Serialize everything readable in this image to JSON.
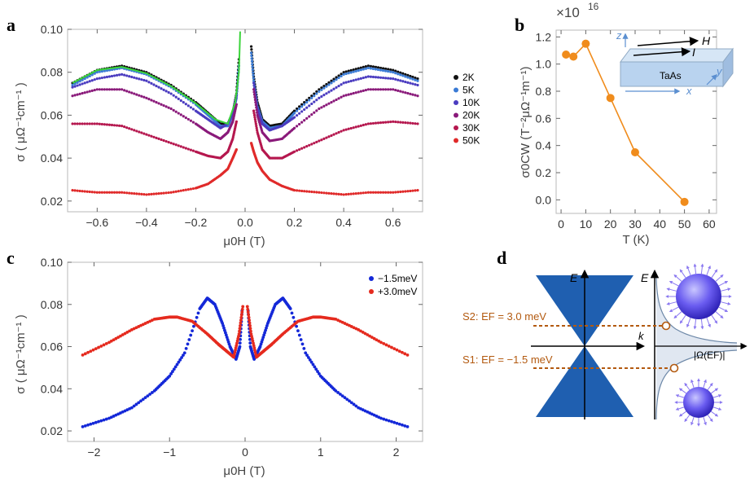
{
  "panels": {
    "a": "a",
    "b": "b",
    "c": "c",
    "d": "d"
  },
  "chart_data": [
    {
      "panel": "a",
      "type": "scatter",
      "xlabel": "μ0H (T)",
      "ylabel": "σ ( μΩ⁻¹cm⁻¹ )",
      "xlim": [
        -0.72,
        0.72
      ],
      "ylim": [
        0.015,
        0.1
      ],
      "xticks": [
        -0.6,
        -0.4,
        -0.2,
        0.0,
        0.2,
        0.4,
        0.6
      ],
      "xtick_labels": [
        "−0.6",
        "−0.4",
        "−0.2",
        "0.0",
        "0.2",
        "0.4",
        "0.6"
      ],
      "yticks": [
        0.02,
        0.04,
        0.06,
        0.08,
        0.1
      ],
      "ytick_labels": [
        "0.02",
        "0.04",
        "0.06",
        "0.08",
        "0.10"
      ],
      "legend_position": "right",
      "series": [
        {
          "name": "2K",
          "color": "#111111",
          "x": [
            -0.7,
            -0.6,
            -0.5,
            -0.4,
            -0.3,
            -0.2,
            -0.15,
            -0.1,
            -0.07,
            -0.05,
            -0.035,
            -0.025,
            0.025,
            0.035,
            0.05,
            0.07,
            0.1,
            0.15,
            0.2,
            0.3,
            0.4,
            0.5,
            0.6,
            0.7
          ],
          "y": [
            0.075,
            0.081,
            0.083,
            0.08,
            0.074,
            0.066,
            0.061,
            0.056,
            0.056,
            0.061,
            0.07,
            0.086,
            0.092,
            0.078,
            0.066,
            0.058,
            0.055,
            0.056,
            0.062,
            0.072,
            0.08,
            0.083,
            0.081,
            0.077
          ]
        },
        {
          "name": "5K",
          "color": "#3a7bd5",
          "x": [
            -0.7,
            -0.6,
            -0.5,
            -0.4,
            -0.3,
            -0.2,
            -0.15,
            -0.1,
            -0.07,
            -0.05,
            -0.035,
            -0.025,
            0.025,
            0.035,
            0.05,
            0.07,
            0.1,
            0.15,
            0.2,
            0.3,
            0.4,
            0.5,
            0.6,
            0.7
          ],
          "y": [
            0.074,
            0.08,
            0.082,
            0.079,
            0.073,
            0.065,
            0.06,
            0.055,
            0.055,
            0.06,
            0.068,
            0.083,
            0.089,
            0.076,
            0.064,
            0.057,
            0.054,
            0.055,
            0.061,
            0.071,
            0.079,
            0.082,
            0.08,
            0.076
          ]
        },
        {
          "name": "10K",
          "color": "#4b3cc0",
          "x": [
            -0.7,
            -0.6,
            -0.5,
            -0.4,
            -0.3,
            -0.2,
            -0.15,
            -0.1,
            -0.07,
            -0.05,
            -0.035,
            0.035,
            0.05,
            0.07,
            0.1,
            0.15,
            0.2,
            0.3,
            0.4,
            0.5,
            0.6,
            0.7
          ],
          "y": [
            0.073,
            0.077,
            0.079,
            0.076,
            0.07,
            0.062,
            0.058,
            0.054,
            0.056,
            0.061,
            0.069,
            0.075,
            0.063,
            0.056,
            0.053,
            0.055,
            0.059,
            0.068,
            0.075,
            0.078,
            0.077,
            0.074
          ]
        },
        {
          "name": "20K",
          "color": "#8a1a7a",
          "x": [
            -0.7,
            -0.6,
            -0.5,
            -0.4,
            -0.3,
            -0.2,
            -0.15,
            -0.1,
            -0.07,
            -0.05,
            -0.035,
            0.035,
            0.05,
            0.07,
            0.1,
            0.15,
            0.2,
            0.3,
            0.4,
            0.5,
            0.6,
            0.7
          ],
          "y": [
            0.069,
            0.072,
            0.072,
            0.068,
            0.063,
            0.056,
            0.052,
            0.049,
            0.052,
            0.057,
            0.065,
            0.072,
            0.06,
            0.052,
            0.048,
            0.049,
            0.054,
            0.063,
            0.069,
            0.072,
            0.072,
            0.069
          ]
        },
        {
          "name": "30K",
          "color": "#b5174e",
          "x": [
            -0.7,
            -0.6,
            -0.5,
            -0.4,
            -0.3,
            -0.2,
            -0.15,
            -0.1,
            -0.07,
            -0.05,
            -0.035,
            0.035,
            0.05,
            0.07,
            0.1,
            0.15,
            0.2,
            0.3,
            0.4,
            0.5,
            0.6,
            0.7
          ],
          "y": [
            0.056,
            0.056,
            0.055,
            0.051,
            0.047,
            0.043,
            0.041,
            0.04,
            0.043,
            0.049,
            0.057,
            0.062,
            0.052,
            0.044,
            0.04,
            0.04,
            0.043,
            0.048,
            0.053,
            0.056,
            0.057,
            0.056
          ]
        },
        {
          "name": "50K",
          "color": "#e02a2a",
          "x": [
            -0.7,
            -0.6,
            -0.5,
            -0.4,
            -0.3,
            -0.2,
            -0.15,
            -0.1,
            -0.07,
            -0.05,
            -0.035,
            0.025,
            0.035,
            0.05,
            0.07,
            0.1,
            0.15,
            0.2,
            0.3,
            0.4,
            0.5,
            0.6,
            0.7
          ],
          "y": [
            0.025,
            0.024,
            0.024,
            0.023,
            0.024,
            0.026,
            0.028,
            0.032,
            0.035,
            0.04,
            0.044,
            0.047,
            0.043,
            0.038,
            0.034,
            0.03,
            0.027,
            0.025,
            0.024,
            0.023,
            0.024,
            0.024,
            0.025
          ]
        }
      ]
    },
    {
      "panel": "b",
      "type": "line",
      "xlabel": "T (K)",
      "ylabel": "σ0CW (T⁻²μΩ⁻¹m⁻¹)",
      "multiplier": "×10",
      "multiplier_exp": "16",
      "xlim": [
        -2,
        63
      ],
      "ylim": [
        -0.1,
        1.25
      ],
      "xticks": [
        0,
        10,
        20,
        30,
        40,
        50,
        60
      ],
      "xtick_labels": [
        "0",
        "10",
        "20",
        "30",
        "40",
        "50",
        "60"
      ],
      "yticks": [
        0.0,
        0.2,
        0.4,
        0.6,
        0.8,
        1.0,
        1.2
      ],
      "ytick_labels": [
        "0.0",
        "0.2",
        "0.4",
        "0.6",
        "0.8",
        "1.0",
        "1.2"
      ],
      "series": [
        {
          "color": "#f08c1c",
          "x": [
            2,
            5,
            10,
            20,
            30,
            50
          ],
          "y": [
            1.07,
            1.055,
            1.15,
            0.75,
            0.35,
            -0.015
          ]
        }
      ],
      "inset": {
        "z": "z",
        "x": "x",
        "y": "y",
        "H": "H",
        "I": "I",
        "material": "TaAs"
      }
    },
    {
      "panel": "c",
      "type": "scatter",
      "xlabel": "μ0H (T)",
      "ylabel": "σ ( μΩ⁻¹cm⁻¹ )",
      "xlim": [
        -2.35,
        2.35
      ],
      "ylim": [
        0.015,
        0.1
      ],
      "xticks": [
        -2,
        -1,
        0,
        1,
        2
      ],
      "xtick_labels": [
        "−2",
        "−1",
        "0",
        "1",
        "2"
      ],
      "yticks": [
        0.02,
        0.04,
        0.06,
        0.08,
        0.1
      ],
      "ytick_labels": [
        "0.02",
        "0.04",
        "0.06",
        "0.08",
        "0.10"
      ],
      "legend_position": "top-right",
      "series": [
        {
          "name": "−1.5meV",
          "color": "#1428d8",
          "x": [
            -2.15,
            -1.8,
            -1.5,
            -1.2,
            -1.0,
            -0.8,
            -0.6,
            -0.5,
            -0.4,
            -0.3,
            -0.2,
            -0.12,
            -0.07,
            -0.04,
            0.04,
            0.07,
            0.12,
            0.2,
            0.3,
            0.4,
            0.5,
            0.6,
            0.8,
            1.0,
            1.2,
            1.5,
            1.8,
            2.15
          ],
          "y": [
            0.022,
            0.026,
            0.031,
            0.039,
            0.046,
            0.057,
            0.078,
            0.083,
            0.08,
            0.071,
            0.06,
            0.054,
            0.06,
            0.077,
            0.077,
            0.06,
            0.054,
            0.06,
            0.071,
            0.08,
            0.083,
            0.078,
            0.057,
            0.046,
            0.039,
            0.031,
            0.026,
            0.022
          ]
        },
        {
          "name": "+3.0meV",
          "color": "#e52a1e",
          "x": [
            -2.15,
            -1.8,
            -1.5,
            -1.2,
            -1.0,
            -0.9,
            -0.7,
            -0.5,
            -0.35,
            -0.25,
            -0.15,
            -0.08,
            -0.03,
            0.03,
            0.08,
            0.15,
            0.25,
            0.35,
            0.5,
            0.7,
            0.9,
            1.0,
            1.2,
            1.5,
            1.8,
            2.15
          ],
          "y": [
            0.056,
            0.062,
            0.068,
            0.073,
            0.074,
            0.074,
            0.072,
            0.066,
            0.061,
            0.058,
            0.055,
            0.066,
            0.079,
            0.079,
            0.066,
            0.055,
            0.058,
            0.061,
            0.066,
            0.072,
            0.074,
            0.074,
            0.073,
            0.068,
            0.062,
            0.056
          ]
        }
      ]
    }
  ],
  "diagram": {
    "axis_E_left": "E",
    "axis_E_right": "E",
    "axis_k": "k",
    "omega_label": "|Ω(EF)|",
    "s2_label": "S2: EF = 3.0 meV",
    "s1_label": "S1: EF = −1.5 meV"
  }
}
